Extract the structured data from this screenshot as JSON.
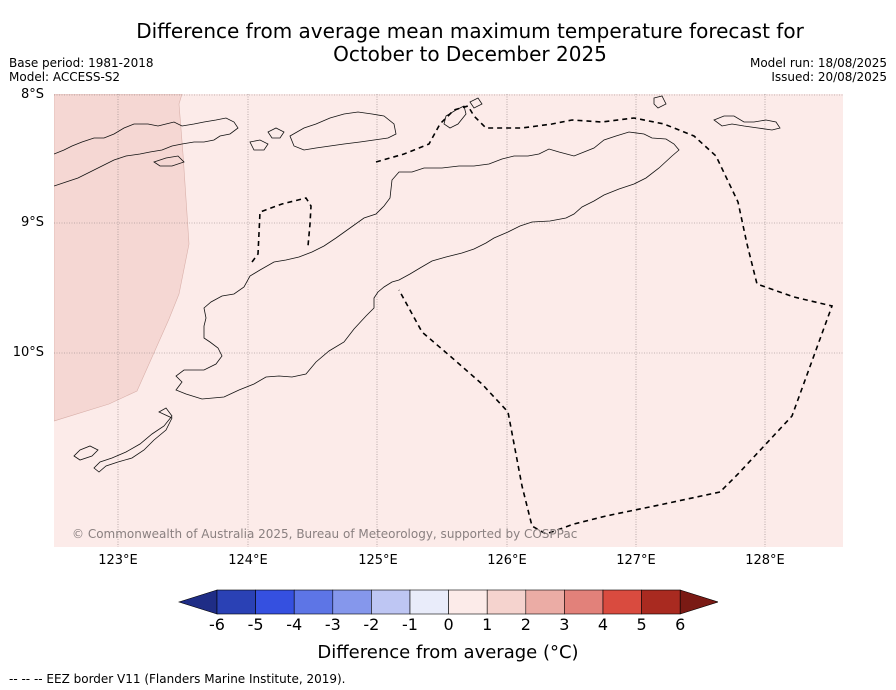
{
  "title_line1": "Difference from average mean maximum temperature forecast for",
  "title_line2": "October to December 2025",
  "meta_left": [
    "Base period: 1981-2018",
    "Model: ACCESS-S2"
  ],
  "meta_right": [
    "Model run: 18/08/2025",
    "Issued: 20/08/2025"
  ],
  "lat_labels": [
    "8°S",
    "9°S",
    "10°S"
  ],
  "lon_labels": [
    "123°E",
    "124°E",
    "125°E",
    "126°E",
    "127°E",
    "128°E"
  ],
  "copyright": "© Commonwealth of Australia 2025, Bureau of Meteorology, supported by COSPPac",
  "colorbar": {
    "label": "Difference from average (°C)",
    "ticks": [
      "-6",
      "-5",
      "-4",
      "-3",
      "-2",
      "-1",
      "0",
      "1",
      "2",
      "3",
      "4",
      "5",
      "6"
    ],
    "colors": [
      "#1f2d86",
      "#2a41b5",
      "#3550e0",
      "#5d75e6",
      "#8597ec",
      "#bec6f3",
      "#e9ecfa",
      "#fcebe9",
      "#f5d3ce",
      "#ebaca5",
      "#e2817a",
      "#d94b3f",
      "#a92a20",
      "#7a1a14"
    ],
    "active_color_main": "#fcebe9",
    "active_color_west": "#f5d7d3"
  },
  "footer": "--  --  -- EEZ border V11 (Flanders Marine Institute, 2019)."
}
